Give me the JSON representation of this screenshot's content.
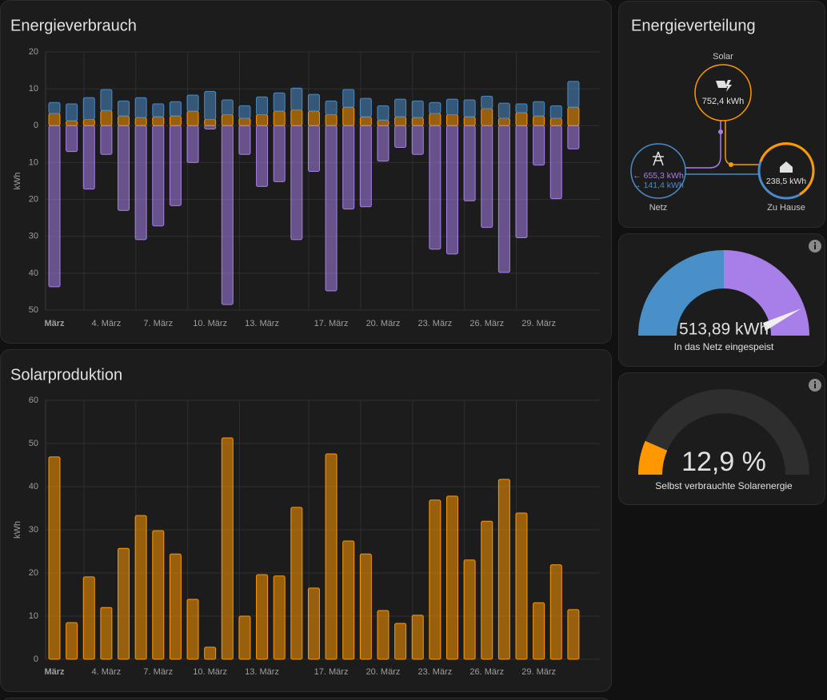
{
  "chart_data": [
    {
      "type": "bar",
      "stacked": true,
      "title": "Energieverbrauch",
      "ylabel": "kWh",
      "grid": true,
      "categories": [
        "März",
        null,
        null,
        "4. März",
        null,
        null,
        "7. März",
        null,
        null,
        "10. März",
        null,
        null,
        "13. März",
        null,
        null,
        null,
        "17. März",
        null,
        null,
        "20. März",
        null,
        null,
        "23. März",
        null,
        null,
        "26. März",
        null,
        null,
        "29. März",
        null,
        null
      ],
      "ylim": [
        -50,
        20
      ],
      "yticks": [
        20,
        10,
        0,
        {
          "value": -10,
          "label": "10"
        },
        {
          "value": -20,
          "label": "20"
        },
        {
          "value": -30,
          "label": "30"
        },
        {
          "value": -40,
          "label": "40"
        },
        {
          "value": -50,
          "label": "50"
        }
      ],
      "series": [
        {
          "color": "#ff9800",
          "values": [
            3.3,
            1.3,
            1.7,
            4.1,
            2.6,
            2.2,
            2.4,
            2.6,
            3.9,
            1.7,
            3.0,
            2.0,
            3.0,
            3.9,
            4.3,
            3.9,
            3.0,
            5.0,
            2.4,
            1.5,
            2.4,
            2.2,
            3.3,
            3.0,
            2.4,
            4.6,
            2.0,
            3.5,
            2.6,
            2.0,
            5.0
          ]
        },
        {
          "color": "#4b8ac6",
          "values": [
            3.0,
            4.6,
            5.9,
            5.7,
            4.1,
            5.4,
            3.5,
            3.9,
            4.4,
            7.6,
            4.0,
            3.4,
            4.8,
            5.0,
            5.9,
            4.6,
            3.7,
            4.8,
            5.0,
            3.9,
            4.8,
            4.5,
            3.0,
            4.2,
            4.6,
            3.4,
            4.1,
            2.4,
            3.9,
            3.4,
            7.0
          ]
        },
        {
          "color": "#a87fe8",
          "values": [
            -43.7,
            -7.0,
            -17.2,
            -7.8,
            -23.0,
            -30.9,
            -27.2,
            -21.7,
            -10.0,
            -0.9,
            -48.5,
            -7.8,
            -16.5,
            -15.2,
            -30.9,
            -12.4,
            -44.8,
            -22.6,
            -22.0,
            -9.6,
            -5.9,
            -7.8,
            -33.5,
            -34.8,
            -20.4,
            -27.6,
            -39.8,
            -30.4,
            -10.7,
            -19.8,
            -6.3
          ]
        }
      ]
    },
    {
      "type": "bar",
      "title": "Solarproduktion",
      "ylabel": "kWh",
      "grid": true,
      "categories": [
        "März",
        null,
        null,
        "4. März",
        null,
        null,
        "7. März",
        null,
        null,
        "10. März",
        null,
        null,
        "13. März",
        null,
        null,
        null,
        "17. März",
        null,
        null,
        "20. März",
        null,
        null,
        "23. März",
        null,
        null,
        "26. März",
        null,
        null,
        "29. März",
        null,
        null
      ],
      "ylim": [
        0,
        60
      ],
      "yticks": [
        0,
        10,
        20,
        30,
        40,
        50,
        60
      ],
      "series": [
        {
          "color": "#ff9800",
          "values": [
            46.9,
            8.5,
            19.1,
            12.0,
            25.7,
            33.3,
            29.8,
            24.4,
            13.9,
            2.8,
            51.3,
            10.0,
            19.6,
            19.3,
            35.2,
            16.5,
            47.6,
            27.4,
            24.4,
            11.3,
            8.3,
            10.2,
            36.9,
            37.8,
            23.0,
            32.0,
            41.7,
            33.9,
            13.1,
            21.9,
            11.5
          ]
        }
      ]
    }
  ],
  "energy_distribution": {
    "title": "Energieverteilung",
    "solar": {
      "label": "Solar",
      "value": "752,4 kWh"
    },
    "grid": {
      "label": "Netz",
      "import": "← 655,3 kWh",
      "export": "→ 141,4 kWh"
    },
    "home": {
      "label": "Zu Hause",
      "value": "238,5 kWh"
    }
  },
  "gauges": [
    {
      "value": "513,89 kWh",
      "label": "In das Netz eingespeist"
    },
    {
      "value": "12,9 %",
      "label": "Selbst verbrauchte Solarenergie"
    }
  ]
}
